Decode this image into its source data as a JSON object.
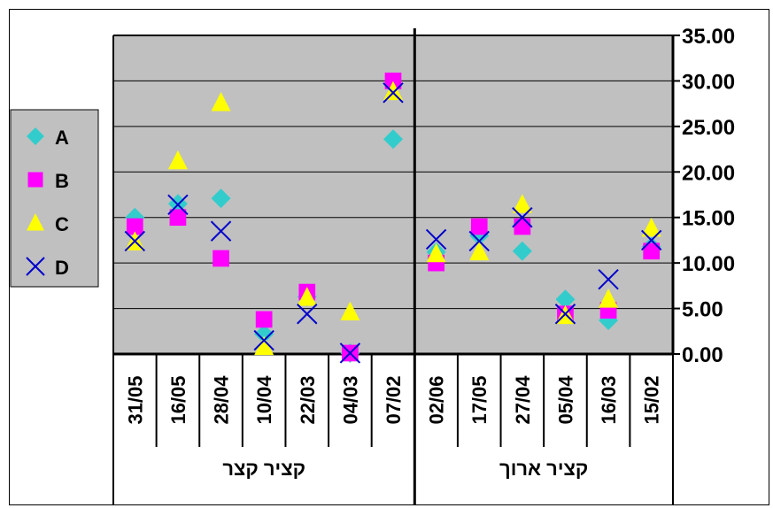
{
  "chart_data": {
    "type": "scatter",
    "title": "",
    "xlabel": "",
    "ylabel": "",
    "ylim": [
      0,
      35
    ],
    "yticks": [
      "0.00",
      "5.00",
      "10.00",
      "15.00",
      "20.00",
      "25.00",
      "30.00",
      "35.00"
    ],
    "y_axis_side": "right",
    "grid": true,
    "legend_position": "left",
    "categories": [
      "31/05",
      "16/05",
      "28/04",
      "10/04",
      "22/03",
      "04/03",
      "07/02",
      "02/06",
      "17/05",
      "27/04",
      "05/04",
      "16/03",
      "15/02"
    ],
    "groups": [
      {
        "label": "קציר קצר",
        "start": 0,
        "count": 7
      },
      {
        "label": "קציר ארוך",
        "start": 7,
        "count": 6
      }
    ],
    "series": [
      {
        "name": "A",
        "marker": "diamond",
        "color": "#33CCCC",
        "values": [
          15.0,
          16.5,
          17.1,
          2.2,
          6.3,
          0.1,
          23.6,
          11.2,
          13.0,
          11.3,
          6.0,
          3.7,
          11.8
        ]
      },
      {
        "name": "B",
        "marker": "square",
        "color": "#FF00FF",
        "values": [
          14.0,
          15.0,
          10.5,
          3.8,
          6.8,
          0.1,
          30.0,
          10.0,
          14.0,
          14.0,
          4.4,
          4.8,
          11.3
        ]
      },
      {
        "name": "C",
        "marker": "triangle",
        "color": "#FFFF00",
        "values": [
          12.3,
          21.2,
          27.6,
          0.8,
          6.2,
          4.6,
          28.8,
          11.0,
          11.2,
          16.4,
          4.2,
          6.0,
          13.8
        ]
      },
      {
        "name": "D",
        "marker": "x",
        "color": "#0000CC",
        "values": [
          12.4,
          16.4,
          13.5,
          1.5,
          4.4,
          0.1,
          28.7,
          12.6,
          12.4,
          15.0,
          4.4,
          8.2,
          12.5
        ]
      }
    ]
  }
}
